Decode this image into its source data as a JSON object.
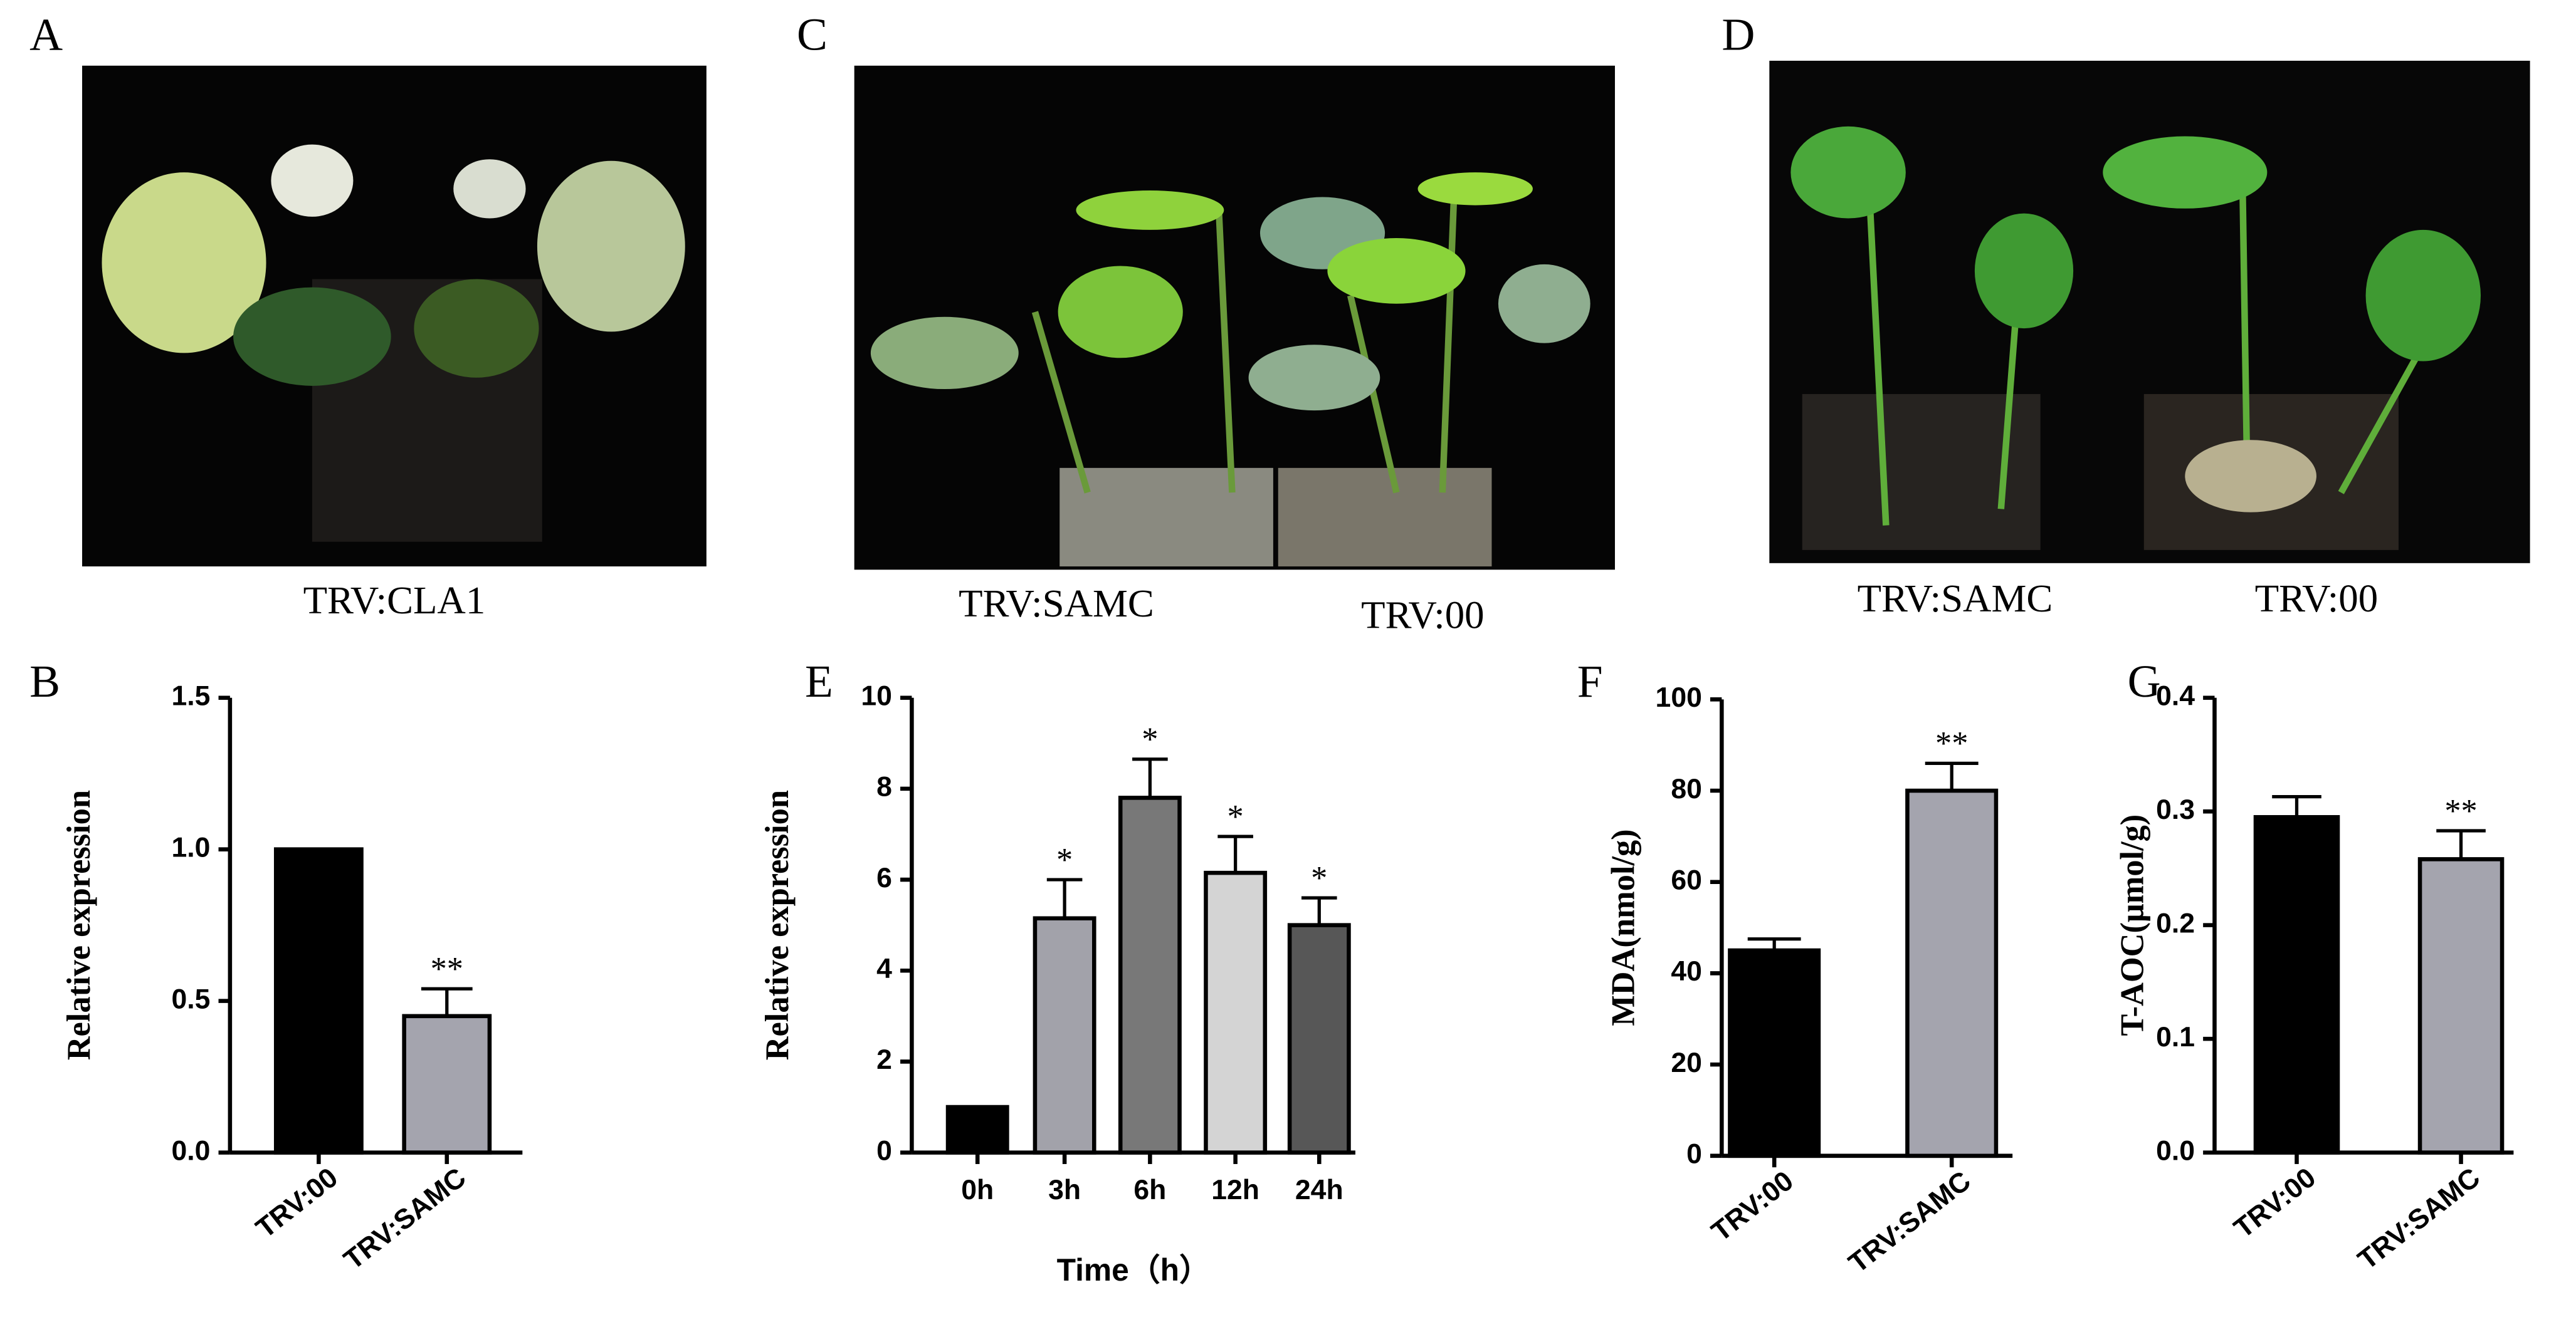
{
  "photos": [
    {
      "label": "A",
      "captions": [
        "TRV:CLA1"
      ]
    },
    {
      "label": "C",
      "captions": [
        "TRV:SAMC",
        "TRV:00"
      ]
    },
    {
      "label": "D",
      "captions": [
        "TRV:SAMC",
        "TRV:00"
      ]
    }
  ],
  "chart_data": [
    {
      "type": "bar",
      "label": "B",
      "ylabel": "Relative expression",
      "categories": [
        "TRV:00",
        "TRV:SAMC"
      ],
      "values": [
        1.0,
        0.45
      ],
      "errors": [
        0,
        0.09
      ],
      "significance": [
        null,
        "**"
      ],
      "colors": [
        "#000000",
        "#a4a4ae"
      ],
      "ylim": [
        0,
        1.5
      ],
      "yticks": [
        {
          "value": 0,
          "label": "0.0"
        },
        0.5,
        {
          "value": 1,
          "label": "1.0"
        },
        1.5
      ]
    },
    {
      "type": "bar",
      "label": "E",
      "ylabel": "Relative expression",
      "xlabel": "Time（h）",
      "categories": [
        "0h",
        "3h",
        "6h",
        "12h",
        "24h"
      ],
      "values": [
        1,
        5.15,
        7.8,
        6.15,
        5.0
      ],
      "errors": [
        0,
        0.85,
        0.85,
        0.8,
        0.6
      ],
      "significance": [
        null,
        "*",
        "*",
        "*",
        "*"
      ],
      "colors": [
        "#000000",
        "#a2a2aa",
        "#787878",
        "#d4d4d4",
        "#575757"
      ],
      "ylim": [
        0,
        10
      ],
      "yticks": [
        0,
        2,
        4,
        6,
        8,
        10
      ]
    },
    {
      "type": "bar",
      "label": "F",
      "ylabel": "MDA(nmol/g)",
      "categories": [
        "TRV:00",
        "TRV:SAMC"
      ],
      "values": [
        45,
        80
      ],
      "errors": [
        2.5,
        6
      ],
      "significance": [
        null,
        "**"
      ],
      "colors": [
        "#000000",
        "#a4a4ae"
      ],
      "ylim": [
        0,
        100
      ],
      "yticks": [
        0,
        20,
        40,
        60,
        80,
        100
      ]
    },
    {
      "type": "bar",
      "label": "G",
      "ylabel": "T-AOC(μmol/g)",
      "categories": [
        "TRV:00",
        "TRV:SAMC"
      ],
      "values": [
        0.295,
        0.258
      ],
      "errors": [
        0.018,
        0.025
      ],
      "significance": [
        null,
        "**"
      ],
      "colors": [
        "#000000",
        "#a4a4ae"
      ],
      "ylim": [
        0,
        0.4
      ],
      "yticks": [
        {
          "value": 0,
          "label": "0.0"
        },
        0.1,
        0.2,
        0.3,
        0.4
      ]
    }
  ]
}
